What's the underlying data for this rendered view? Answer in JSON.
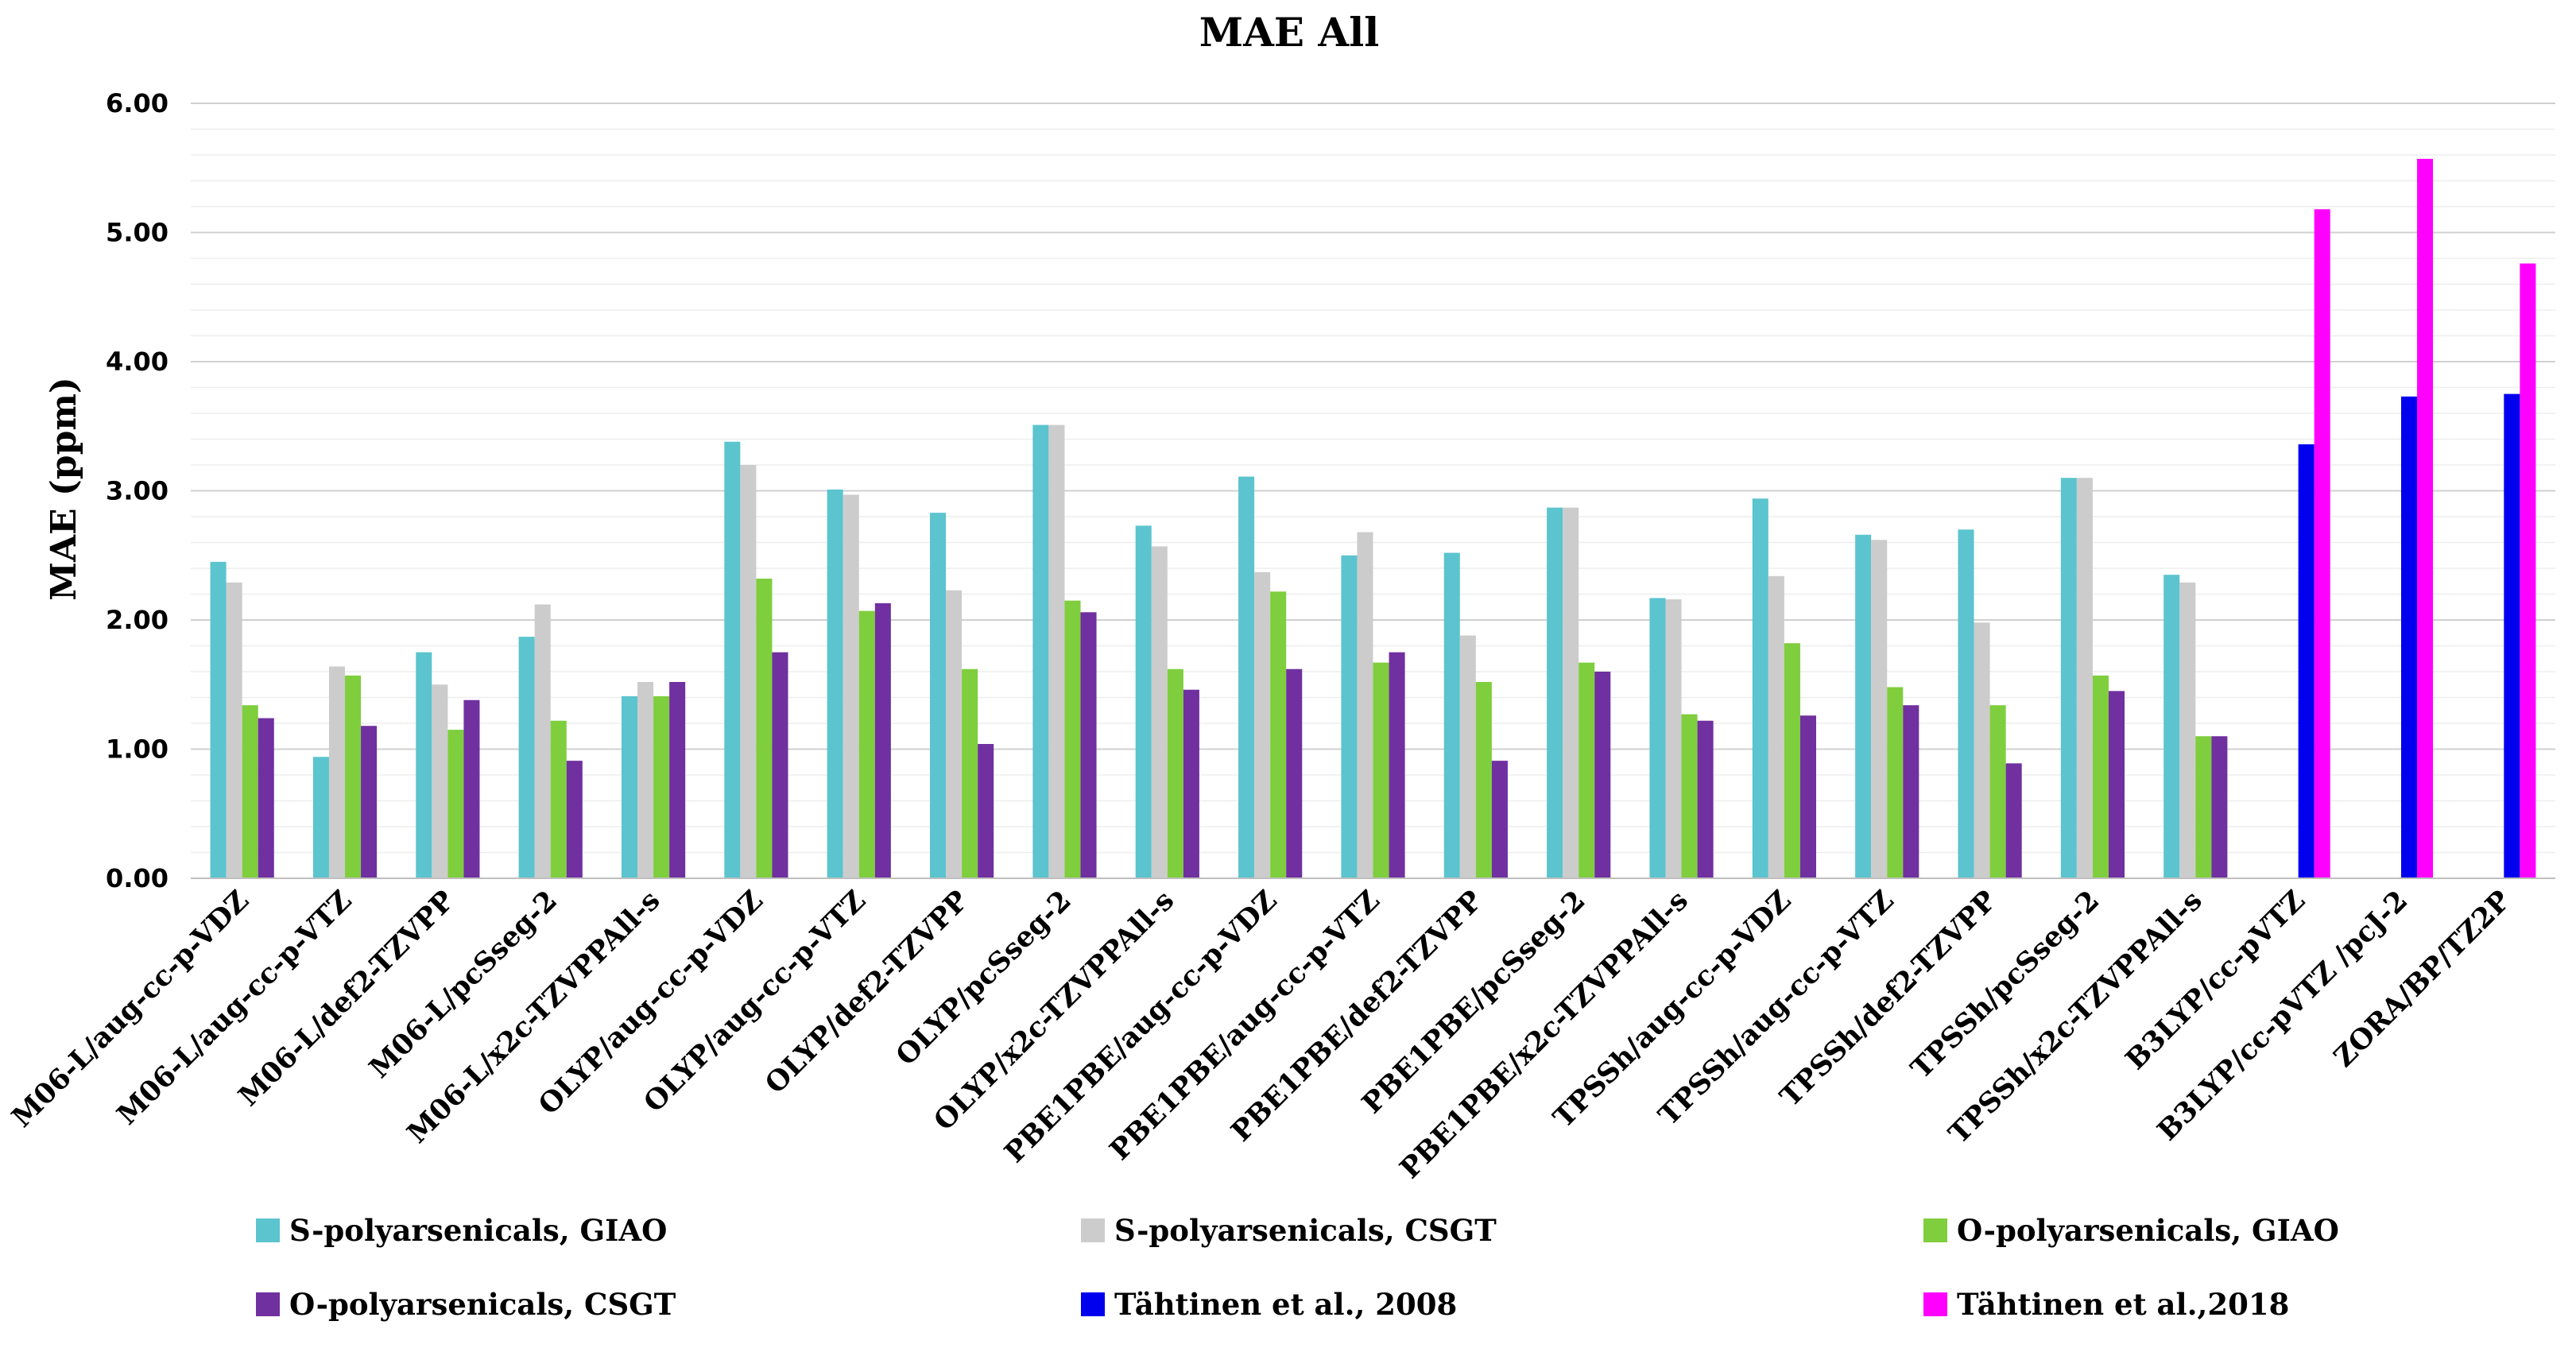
{
  "chart_data": {
    "type": "bar",
    "title": "MAE All",
    "xlabel": "",
    "ylabel": "MAE (ppm)",
    "ylim": [
      0,
      6
    ],
    "yticks": [
      "0.00",
      "1.00",
      "2.00",
      "3.00",
      "4.00",
      "5.00",
      "6.00"
    ],
    "grid": true,
    "legend_position": "bottom",
    "categories": [
      "M06-L/aug-cc-p-VDZ",
      "M06-L/aug-cc-p-VTZ",
      "M06-L/def2-TZVPP",
      "M06-L/pcSseg-2",
      "M06-L/x2c-TZVPPAll-s",
      "OLYP/aug-cc-p-VDZ",
      "OLYP/aug-cc-p-VTZ",
      "OLYP/def2-TZVPP",
      "OLYP/pcSseg-2",
      "OLYP/x2c-TZVPPAll-s",
      "PBE1PBE/aug-cc-p-VDZ",
      "PBE1PBE/aug-cc-p-VTZ",
      "PBE1PBE/def2-TZVPP",
      "PBE1PBE/pcSseg-2",
      "PBE1PBE/x2c-TZVPPAll-s",
      "TPSSh/aug-cc-p-VDZ",
      "TPSSh/aug-cc-p-VTZ",
      "TPSSh/def2-TZVPP",
      "TPSSh/pcSseg-2",
      "TPSSh/x2c-TZVPPAll-s",
      "B3LYP/cc-pVTZ",
      "B3LYP/cc-pVTZ /pcJ-2",
      "ZORA/BP/TZ2P"
    ],
    "series": [
      {
        "name": "S-polyarsenicals, GIAO",
        "color": "#5BC4CF",
        "values": [
          2.45,
          0.94,
          1.75,
          1.87,
          1.41,
          3.38,
          3.01,
          2.83,
          3.51,
          2.73,
          3.11,
          2.5,
          2.52,
          2.87,
          2.17,
          2.94,
          2.66,
          2.7,
          3.1,
          2.35,
          null,
          null,
          null
        ]
      },
      {
        "name": "S-polyarsenicals, CSGT",
        "color": "#CCCCCC",
        "values": [
          2.29,
          1.64,
          1.5,
          2.12,
          1.52,
          3.2,
          2.97,
          2.23,
          3.51,
          2.57,
          2.37,
          2.68,
          1.88,
          2.87,
          2.16,
          2.34,
          2.62,
          1.98,
          3.1,
          2.29,
          null,
          null,
          null
        ]
      },
      {
        "name": "O-polyarsenicals, GIAO",
        "color": "#7FCE3D",
        "values": [
          1.34,
          1.57,
          1.15,
          1.22,
          1.41,
          2.32,
          2.07,
          1.62,
          2.15,
          1.62,
          2.22,
          1.67,
          1.52,
          1.67,
          1.27,
          1.82,
          1.48,
          1.34,
          1.57,
          1.1,
          null,
          null,
          null
        ]
      },
      {
        "name": "O-polyarsenicals, CSGT",
        "color": "#7030A0",
        "values": [
          1.24,
          1.18,
          1.38,
          0.91,
          1.52,
          1.75,
          2.13,
          1.04,
          2.06,
          1.46,
          1.62,
          1.75,
          0.91,
          1.6,
          1.22,
          1.26,
          1.34,
          0.89,
          1.45,
          1.1,
          null,
          null,
          null
        ]
      },
      {
        "name": "Tähtinen et al., 2008",
        "color": "#0000EE",
        "values": [
          null,
          null,
          null,
          null,
          null,
          null,
          null,
          null,
          null,
          null,
          null,
          null,
          null,
          null,
          null,
          null,
          null,
          null,
          null,
          null,
          3.36,
          3.73,
          3.75
        ]
      },
      {
        "name": "Tähtinen et al.,2018",
        "color": "#FF00FF",
        "values": [
          null,
          null,
          null,
          null,
          null,
          null,
          null,
          null,
          null,
          null,
          null,
          null,
          null,
          null,
          null,
          null,
          null,
          null,
          null,
          null,
          5.18,
          5.57,
          4.76
        ]
      }
    ]
  }
}
